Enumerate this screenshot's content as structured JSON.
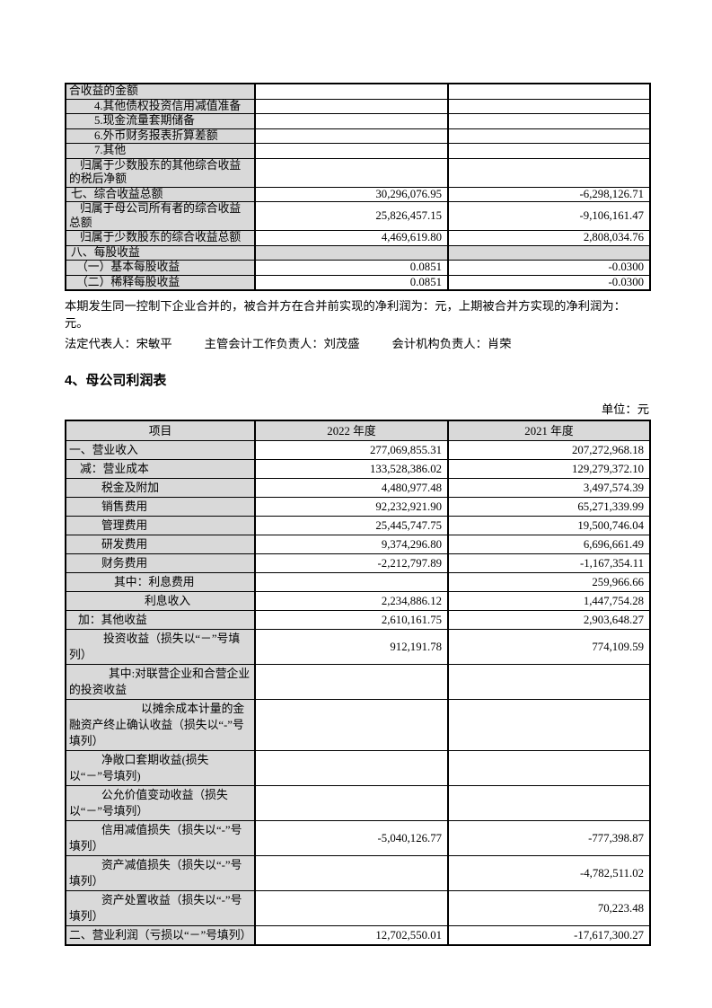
{
  "notes": {
    "merger": "本期发生同一控制下企业合并的，被合并方在合并前实现的净利润为：元，上期被合并方实现的净利润为：元。"
  },
  "signatories": {
    "legal_rep": "法定代表人：宋敏平",
    "accounting_head": "主管会计工作负责人：刘茂盛",
    "accounting_org": "会计机构负责人：肖荣"
  },
  "section": {
    "heading": "4、母公司利润表",
    "unit_label": "单位：元"
  },
  "colors": {
    "cell_shading": "#d9d9d9",
    "border": "#000000"
  },
  "table1": {
    "rows": [
      {
        "label": "合收益的金额",
        "indent": 0,
        "v2022": "",
        "v2021": ""
      },
      {
        "label": "4.其他债权投资信用减值准备",
        "indent": 28,
        "v2022": "",
        "v2021": ""
      },
      {
        "label": "5.现金流量套期储备",
        "indent": 28,
        "v2022": "",
        "v2021": ""
      },
      {
        "label": "6.外币财务报表折算差额",
        "indent": 28,
        "v2022": "",
        "v2021": ""
      },
      {
        "label": "7.其他",
        "indent": 28,
        "v2022": "",
        "v2021": ""
      },
      {
        "label": "归属于少数股东的其他综合收益的税后净额",
        "indent": 12,
        "v2022": "",
        "v2021": ""
      },
      {
        "label": "七、综合收益总额",
        "indent": 2,
        "v2022": "30,296,076.95",
        "v2021": "-6,298,126.71"
      },
      {
        "label": "归属于母公司所有者的综合收益总额",
        "indent": 12,
        "v2022": "25,826,457.15",
        "v2021": "-9,106,161.47"
      },
      {
        "label": "归属于少数股东的综合收益总额",
        "indent": 12,
        "v2022": "4,469,619.80",
        "v2021": "2,808,034.76"
      },
      {
        "label": "八、每股收益",
        "indent": 2,
        "shaded": true,
        "v2022": "",
        "v2021": ""
      },
      {
        "label": "（一）基本每股收益",
        "indent": 8,
        "v2022": "0.0851",
        "v2021": "-0.0300"
      },
      {
        "label": "（二）稀释每股收益",
        "indent": 8,
        "v2022": "0.0851",
        "v2021": "-0.0300"
      }
    ]
  },
  "table2": {
    "headers": [
      "项目",
      "2022 年度",
      "2021 年度"
    ],
    "rows": [
      {
        "label": "一、营业收入",
        "indent": 0,
        "v2022": "277,069,855.31",
        "v2021": "207,272,968.18"
      },
      {
        "label": "减：营业成本",
        "indent": 12,
        "v2022": "133,528,386.02",
        "v2021": "129,279,372.10"
      },
      {
        "label": "税金及附加",
        "indent": 36,
        "v2022": "4,480,977.48",
        "v2021": "3,497,574.39"
      },
      {
        "label": "销售费用",
        "indent": 36,
        "v2022": "92,232,921.90",
        "v2021": "65,271,339.99"
      },
      {
        "label": "管理费用",
        "indent": 36,
        "v2022": "25,445,747.75",
        "v2021": "19,500,746.04"
      },
      {
        "label": "研发费用",
        "indent": 36,
        "v2022": "9,374,296.80",
        "v2021": "6,696,661.49"
      },
      {
        "label": "财务费用",
        "indent": 36,
        "v2022": "-2,212,797.89",
        "v2021": "-1,167,354.11"
      },
      {
        "label": "其中：利息费用",
        "indent": 50,
        "v2022": "",
        "v2021": "259,966.66"
      },
      {
        "label": "利息收入",
        "indent": 84,
        "v2022": "2,234,886.12",
        "v2021": "1,447,754.28"
      },
      {
        "label": "加：其他收益",
        "indent": 10,
        "v2022": "2,610,161.75",
        "v2021": "2,903,648.27"
      },
      {
        "label": "投资收益（损失以“－”号填列）",
        "indent": 38,
        "v2022": "912,191.78",
        "v2021": "774,109.59"
      },
      {
        "label": "其中:对联营企业和合营企业的投资收益",
        "indent": 44,
        "v2022": "",
        "v2021": ""
      },
      {
        "label": "以摊余成本计量的金融资产终止确认收益（损失以“-”号填列）",
        "indent": 80,
        "v2022": "",
        "v2021": ""
      },
      {
        "label": "净敞口套期收益(损失以“－”号填列)",
        "indent": 36,
        "v2022": "",
        "v2021": ""
      },
      {
        "label": "公允价值变动收益（损失以“－”号填列）",
        "indent": 36,
        "v2022": "",
        "v2021": ""
      },
      {
        "label": "信用减值损失（损失以“-”号填列）",
        "indent": 36,
        "v2022": "-5,040,126.77",
        "v2021": "-777,398.87"
      },
      {
        "label": "资产减值损失（损失以“-”号填列）",
        "indent": 36,
        "v2022": "",
        "v2021": "-4,782,511.02"
      },
      {
        "label": "资产处置收益（损失以“-”号填列）",
        "indent": 36,
        "v2022": "",
        "v2021": "70,223.48"
      },
      {
        "label": "二、营业利润（亏损以“－”号填列）",
        "indent": 0,
        "v2022": "12,702,550.01",
        "v2021": "-17,617,300.27"
      }
    ]
  }
}
